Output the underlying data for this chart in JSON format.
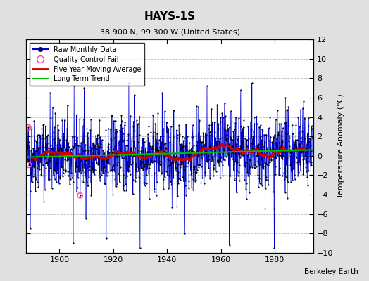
{
  "title": "HAYS-1S",
  "subtitle": "38.900 N, 99.300 W (United States)",
  "ylabel": "Temperature Anomaly (°C)",
  "credit": "Berkeley Earth",
  "start_year": 1888,
  "end_year": 1993,
  "ylim": [
    -10,
    12
  ],
  "yticks": [
    -10,
    -8,
    -6,
    -4,
    -2,
    0,
    2,
    4,
    6,
    8,
    10,
    12
  ],
  "xticks": [
    1900,
    1920,
    1940,
    1960,
    1980
  ],
  "raw_color": "#0000cc",
  "stem_color": "#6688ee",
  "dot_color": "#000000",
  "mavg_color": "#cc0000",
  "trend_color": "#00bb00",
  "qc_fail_color": "#ff44aa",
  "background_color": "#e0e0e0",
  "plot_bg_color": "#ffffff",
  "grid_color": "#bbbbbb",
  "seed": 42,
  "noise_std": 1.9,
  "n_qc_fail": 4,
  "qc_fail_indices": [
    3,
    6,
    8,
    236
  ],
  "spike_indices": [
    14,
    102,
    205,
    254,
    352,
    453,
    503,
    602,
    703,
    802,
    902,
    952,
    1002,
    1102,
    1152
  ],
  "spike_values": [
    -7.5,
    6.5,
    -9.0,
    7.0,
    -8.5,
    7.5,
    -9.5,
    6.5,
    -8.0,
    7.2,
    -9.2,
    6.8,
    7.5,
    -9.5,
    6.0
  ]
}
